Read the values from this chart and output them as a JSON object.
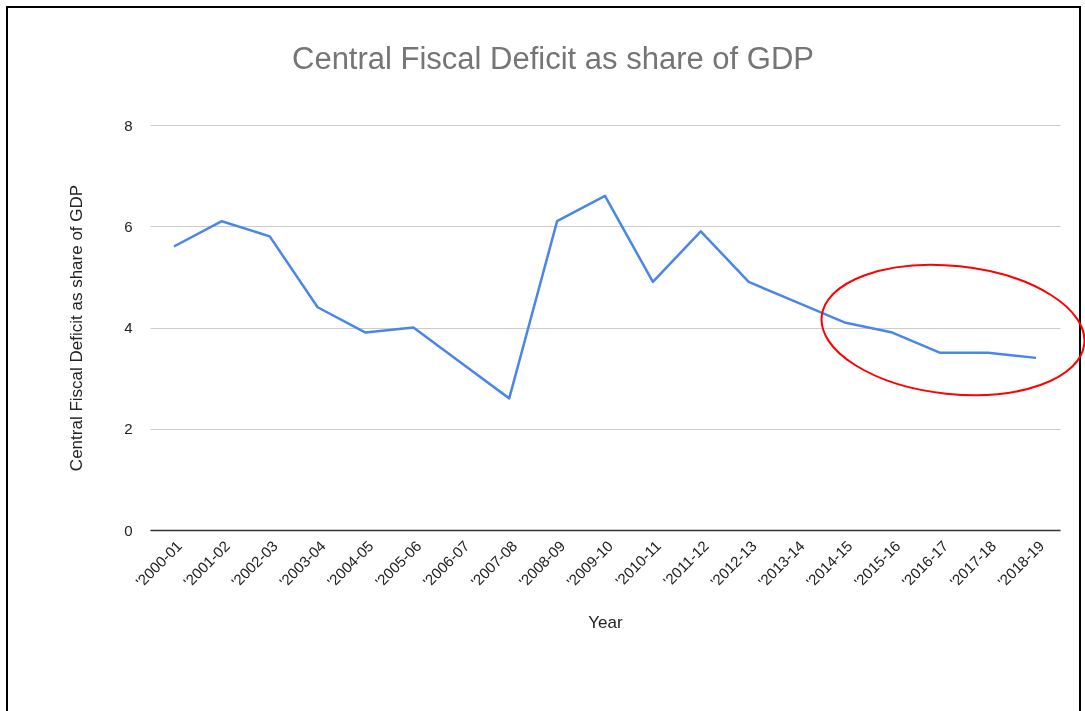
{
  "chart_data": {
    "type": "line",
    "title": "Central Fiscal Deficit as share of GDP",
    "xlabel": "Year",
    "ylabel": "Central Fiscal Deficit as share of GDP",
    "categories": [
      "'2000-01",
      "'2001-02",
      "'2002-03",
      "'2003-04",
      "'2004-05",
      "'2005-06",
      "'2006-07",
      "'2007-08",
      "'2008-09",
      "'2009-10",
      "'2010-11",
      "'2011-12",
      "'2012-13",
      "'2013-14",
      "'2014-15",
      "'2015-16",
      "'2016-17",
      "'2017-18",
      "'2018-19"
    ],
    "series": [
      {
        "color": "#4a86e8",
        "values": [
          5.6,
          6.1,
          5.8,
          4.4,
          3.9,
          4.0,
          3.3,
          2.6,
          6.1,
          6.6,
          4.9,
          5.9,
          4.9,
          4.5,
          4.1,
          3.9,
          3.5,
          3.5,
          3.4
        ]
      }
    ],
    "ylim": [
      0,
      8
    ],
    "yticks": [
      0,
      2,
      4,
      6,
      8
    ],
    "grid": "y",
    "line_style": "solid"
  }
}
